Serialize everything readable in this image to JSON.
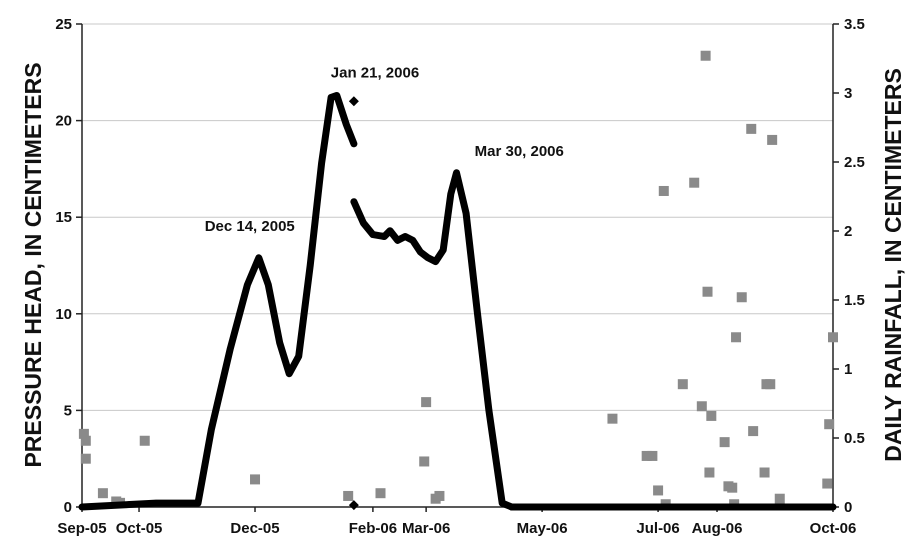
{
  "chart_data": {
    "type": "line",
    "ylabel": "PRESSURE HEAD, IN CENTIMETERS",
    "y2label": "DAILY RAINFALL, IN CENTIMETERS",
    "ylim": [
      0,
      25
    ],
    "y2lim": [
      0,
      3.5
    ],
    "xlim": [
      "2005-09-01",
      "2006-10-01"
    ],
    "y_ticks": [
      "0",
      "5",
      "10",
      "15",
      "20",
      "25"
    ],
    "y2_ticks": [
      "0",
      "0.5",
      "1",
      "1.5",
      "2",
      "2.5",
      "3",
      "3.5"
    ],
    "x_ticks": [
      {
        "label": "Sep-05",
        "date": "2005-09-01"
      },
      {
        "label": "Oct-05",
        "date": "2005-10-01"
      },
      {
        "label": "Dec-05",
        "date": "2005-12-01"
      },
      {
        "label": "Feb-06",
        "date": "2006-02-01"
      },
      {
        "label": "Mar-06",
        "date": "2006-03-01"
      },
      {
        "label": "May-06",
        "date": "2006-05-01"
      },
      {
        "label": "Jul-06",
        "date": "2006-07-01"
      },
      {
        "label": "Aug-06",
        "date": "2006-08-01"
      },
      {
        "label": "Oct-06",
        "date": "2006-10-01"
      }
    ],
    "grid": "horizontal",
    "colors": {
      "pressure": "#000000",
      "rainfall": "#8a8a8a",
      "grid": "#c8c8c8"
    },
    "annotations": [
      {
        "text": "Dec 14, 2005",
        "date": "2005-12-14",
        "value": 13.0
      },
      {
        "text": "Jan 21, 2006",
        "date": "2006-01-21",
        "value": 21.3
      },
      {
        "text": "Mar 30, 2006",
        "date": "2006-03-30",
        "value": 17.3
      }
    ],
    "series": [
      {
        "axis": "left",
        "style": "line",
        "segments": [
          [
            [
              "2005-09-01",
              0
            ],
            [
              "2005-09-20",
              0.1
            ],
            [
              "2005-10-10",
              0.2
            ],
            [
              "2005-11-01",
              0.2
            ],
            [
              "2005-11-08",
              4.0
            ],
            [
              "2005-11-18",
              8.2
            ],
            [
              "2005-11-27",
              11.5
            ],
            [
              "2005-12-03",
              12.9
            ],
            [
              "2005-12-08",
              11.5
            ],
            [
              "2005-12-14",
              8.5
            ],
            [
              "2005-12-19",
              6.9
            ],
            [
              "2005-12-24",
              7.8
            ],
            [
              "2005-12-30",
              12.5
            ],
            [
              "2006-01-05",
              17.8
            ],
            [
              "2006-01-10",
              21.2
            ],
            [
              "2006-01-13",
              21.3
            ],
            [
              "2006-01-18",
              19.8
            ],
            [
              "2006-01-22",
              18.8
            ]
          ],
          [
            [
              "2006-01-22",
              15.8
            ],
            [
              "2006-01-27",
              14.7
            ],
            [
              "2006-02-01",
              14.1
            ],
            [
              "2006-02-07",
              14.0
            ],
            [
              "2006-02-10",
              14.3
            ],
            [
              "2006-02-14",
              13.8
            ],
            [
              "2006-02-18",
              14.0
            ],
            [
              "2006-02-22",
              13.8
            ],
            [
              "2006-02-26",
              13.2
            ],
            [
              "2006-03-02",
              12.9
            ],
            [
              "2006-03-06",
              12.7
            ],
            [
              "2006-03-10",
              13.3
            ],
            [
              "2006-03-14",
              16.2
            ],
            [
              "2006-03-17",
              17.3
            ],
            [
              "2006-03-22",
              15.2
            ],
            [
              "2006-03-28",
              10.0
            ],
            [
              "2006-04-03",
              5.0
            ],
            [
              "2006-04-10",
              0.2
            ],
            [
              "2006-04-15",
              0
            ]
          ],
          [
            [
              "2006-04-15",
              0
            ],
            [
              "2006-10-01",
              0
            ]
          ]
        ]
      },
      {
        "axis": "left",
        "style": "diamond",
        "points": [
          [
            "2006-01-22",
            21.0
          ],
          [
            "2006-01-22",
            0.1
          ]
        ]
      },
      {
        "axis": "right",
        "style": "square",
        "points": [
          [
            "2005-09-02",
            0.53
          ],
          [
            "2005-09-03",
            0.48
          ],
          [
            "2005-09-03",
            0.35
          ],
          [
            "2005-09-12",
            0.1
          ],
          [
            "2005-09-19",
            0.04
          ],
          [
            "2005-09-21",
            0.03
          ],
          [
            "2005-10-04",
            0.48
          ],
          [
            "2005-12-01",
            0.2
          ],
          [
            "2006-01-19",
            0.08
          ],
          [
            "2006-02-05",
            0.1
          ],
          [
            "2006-02-28",
            0.33
          ],
          [
            "2006-03-01",
            0.76
          ],
          [
            "2006-03-06",
            0.06
          ],
          [
            "2006-03-08",
            0.08
          ],
          [
            "2006-06-07",
            0.64
          ],
          [
            "2006-06-25",
            0.37
          ],
          [
            "2006-06-28",
            0.37
          ],
          [
            "2006-07-01",
            0.12
          ],
          [
            "2006-07-04",
            2.29
          ],
          [
            "2006-07-05",
            0.02
          ],
          [
            "2006-07-14",
            0.89
          ],
          [
            "2006-07-20",
            2.35
          ],
          [
            "2006-07-24",
            0.73
          ],
          [
            "2006-07-26",
            3.27
          ],
          [
            "2006-07-27",
            1.56
          ],
          [
            "2006-07-28",
            0.25
          ],
          [
            "2006-07-29",
            0.66
          ],
          [
            "2006-08-05",
            0.47
          ],
          [
            "2006-08-07",
            0.15
          ],
          [
            "2006-08-09",
            0.14
          ],
          [
            "2006-08-10",
            0.02
          ],
          [
            "2006-08-11",
            1.23
          ],
          [
            "2006-08-14",
            1.52
          ],
          [
            "2006-08-19",
            2.74
          ],
          [
            "2006-08-20",
            0.55
          ],
          [
            "2006-08-26",
            0.25
          ],
          [
            "2006-08-27",
            0.89
          ],
          [
            "2006-08-29",
            0.89
          ],
          [
            "2006-08-30",
            2.66
          ],
          [
            "2006-09-03",
            0.06
          ],
          [
            "2006-09-28",
            0.17
          ],
          [
            "2006-09-29",
            0.6
          ],
          [
            "2006-10-01",
            1.23
          ]
        ]
      }
    ]
  }
}
